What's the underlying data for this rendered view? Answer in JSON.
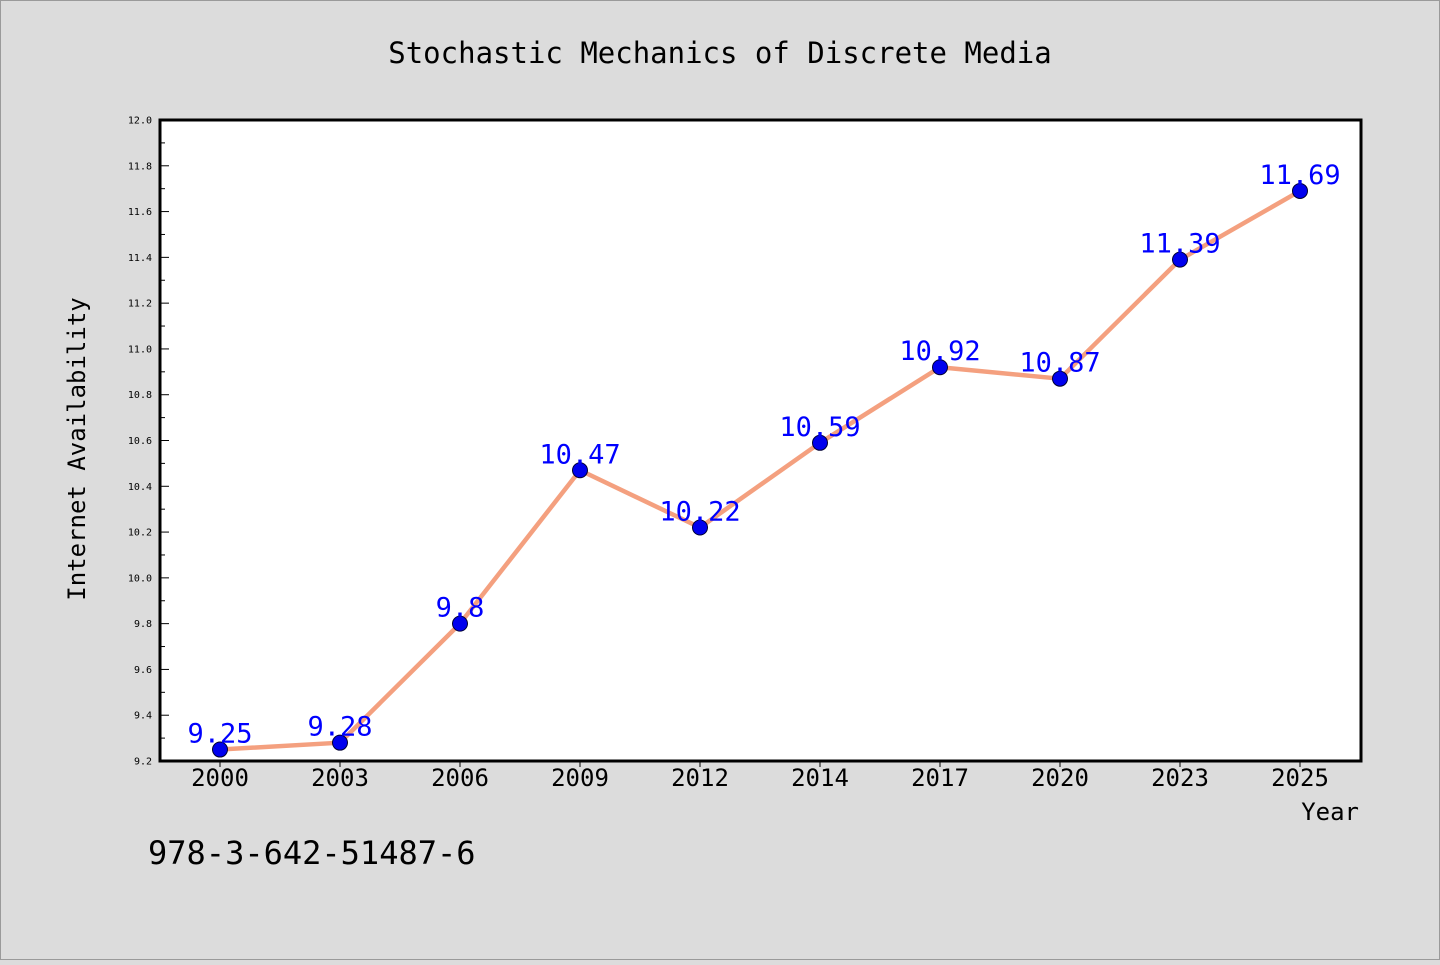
{
  "chart_data": {
    "type": "line",
    "title": "Stochastic Mechanics of Discrete Media",
    "xlabel": "Year",
    "ylabel": "Internet Availability",
    "categories": [
      "2000",
      "2003",
      "2006",
      "2009",
      "2012",
      "2014",
      "2017",
      "2020",
      "2023",
      "2025"
    ],
    "series": [
      {
        "values": [
          9.25,
          9.28,
          9.8,
          10.47,
          10.22,
          10.59,
          10.92,
          10.87,
          11.39,
          11.69
        ],
        "data_labels": [
          "9.25",
          "9.28",
          "9.8",
          "10.47",
          "10.22",
          "10.59",
          "10.92",
          "10.87",
          "11.39",
          "11.69"
        ]
      }
    ],
    "ylim": [
      9.2,
      12.0
    ],
    "yticks": [
      "9.2",
      "9.4",
      "9.6",
      "9.8",
      "10.0",
      "10.2",
      "10.4",
      "10.6",
      "10.8",
      "11.0",
      "11.2",
      "11.4",
      "11.6",
      "11.8",
      "12.0"
    ],
    "grid": false,
    "legend": "none",
    "colors": {
      "line": "#f4a07f",
      "marker": "#0000ee",
      "label": "#0000ff",
      "background": "#dcdcdc",
      "plot_background": "#ffffff"
    }
  },
  "footer": {
    "isbn": "978-3-642-51487-6"
  }
}
